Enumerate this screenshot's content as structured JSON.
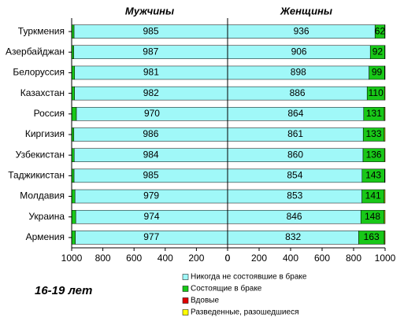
{
  "chart_data": [
    {
      "type": "bar",
      "orientation": "horizontal",
      "stacked": true,
      "title": "Мужчины",
      "annotation": "16-19 лет",
      "categories": [
        "Туркмения",
        "Азербайджан",
        "Белоруссия",
        "Казахстан",
        "Россия",
        "Киргизия",
        "Узбекистан",
        "Таджикистан",
        "Молдавия",
        "Украина",
        "Армения"
      ],
      "series": [
        {
          "name": "Никогда  не состоявшие в браке",
          "color": "#a0f8f8",
          "labels": true,
          "values": [
            985,
            987,
            981,
            982,
            970,
            986,
            984,
            985,
            979,
            974,
            977
          ]
        },
        {
          "name": "Состоящие в браке",
          "color": "#18c818",
          "labels": false,
          "values": [
            14,
            12,
            18,
            17,
            29,
            13,
            15,
            14,
            20,
            25,
            22
          ]
        },
        {
          "name": "Вдовые",
          "color": "#e00000",
          "labels": false,
          "values": [
            0,
            0,
            0,
            0,
            0,
            0,
            0,
            0,
            0,
            0,
            0
          ]
        },
        {
          "name": "Разведенные,  разошедшиеся",
          "color": "#ffff00",
          "labels": false,
          "values": [
            1,
            1,
            1,
            1,
            1,
            1,
            1,
            1,
            1,
            1,
            1
          ]
        }
      ],
      "xlim": [
        1000,
        0
      ],
      "xticks": [
        1000,
        800,
        600,
        400,
        200,
        0
      ]
    },
    {
      "type": "bar",
      "orientation": "horizontal",
      "stacked": true,
      "title": "Женщины",
      "series": [
        {
          "color": "#a0f8f8",
          "labels": true,
          "values": [
            936,
            906,
            898,
            886,
            864,
            861,
            860,
            854,
            853,
            846,
            832
          ]
        },
        {
          "color": "#18c818",
          "labels": true,
          "values": [
            62,
            92,
            99,
            110,
            131,
            133,
            136,
            143,
            141,
            148,
            163
          ]
        },
        {
          "color": "#e00000",
          "labels": false,
          "values": [
            0,
            0,
            1,
            1,
            1,
            1,
            1,
            1,
            1,
            1,
            1
          ]
        },
        {
          "color": "#ffff00",
          "labels": false,
          "values": [
            2,
            2,
            2,
            3,
            4,
            5,
            3,
            2,
            5,
            5,
            4
          ]
        }
      ],
      "xlim": [
        0,
        1000
      ],
      "xticks": [
        0,
        200,
        400,
        600,
        800,
        1000
      ]
    }
  ]
}
